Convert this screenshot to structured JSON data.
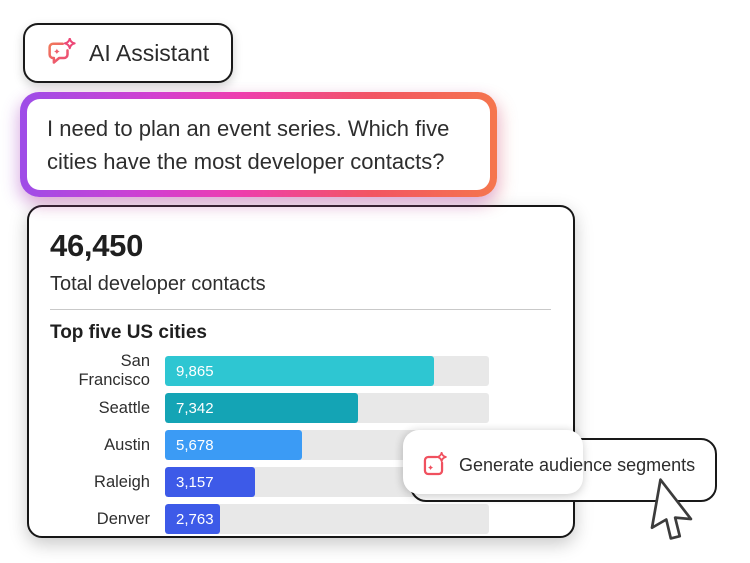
{
  "assistant_badge": {
    "label": "AI Assistant",
    "icon": "ai-assistant-sparkle-chat-icon"
  },
  "user_message": {
    "lines": [
      "I need to plan an event series. Which five",
      "cities have the most developer contacts?"
    ]
  },
  "summary_card": {
    "total_value": "46,450",
    "total_label": "Total developer contacts",
    "chart_title": "Top five US cities"
  },
  "chart_data": {
    "type": "bar",
    "orientation": "horizontal",
    "title": "Top five US cities",
    "categories": [
      "San Francisco",
      "Seattle",
      "Austin",
      "Raleigh",
      "Denver"
    ],
    "values": [
      9865,
      7342,
      5678,
      3157,
      2763
    ],
    "value_labels": [
      "9,865",
      "7,342",
      "5,678",
      "3,157",
      "2,763"
    ],
    "bar_colors": [
      "#2ec6d2",
      "#14a4b5",
      "#3b9bf5",
      "#3d5ae8",
      "#3d5ae8"
    ],
    "bar_percents": [
      83,
      59.5,
      42.3,
      27.8,
      17
    ],
    "track_color": "#e8e8e8",
    "xlim": [
      0,
      11880
    ],
    "grid": false,
    "legend": false
  },
  "tooltip": {
    "label": "Generate audience segments",
    "icon": "generate-sparkle-icon"
  },
  "colors": {
    "accent_red": "#f0515f",
    "border_dark": "#1a1a1a",
    "bubble_gradient": [
      "#9d4de8",
      "#ee3dae",
      "#f5764d"
    ],
    "text_dark": "#2d2d2d"
  }
}
